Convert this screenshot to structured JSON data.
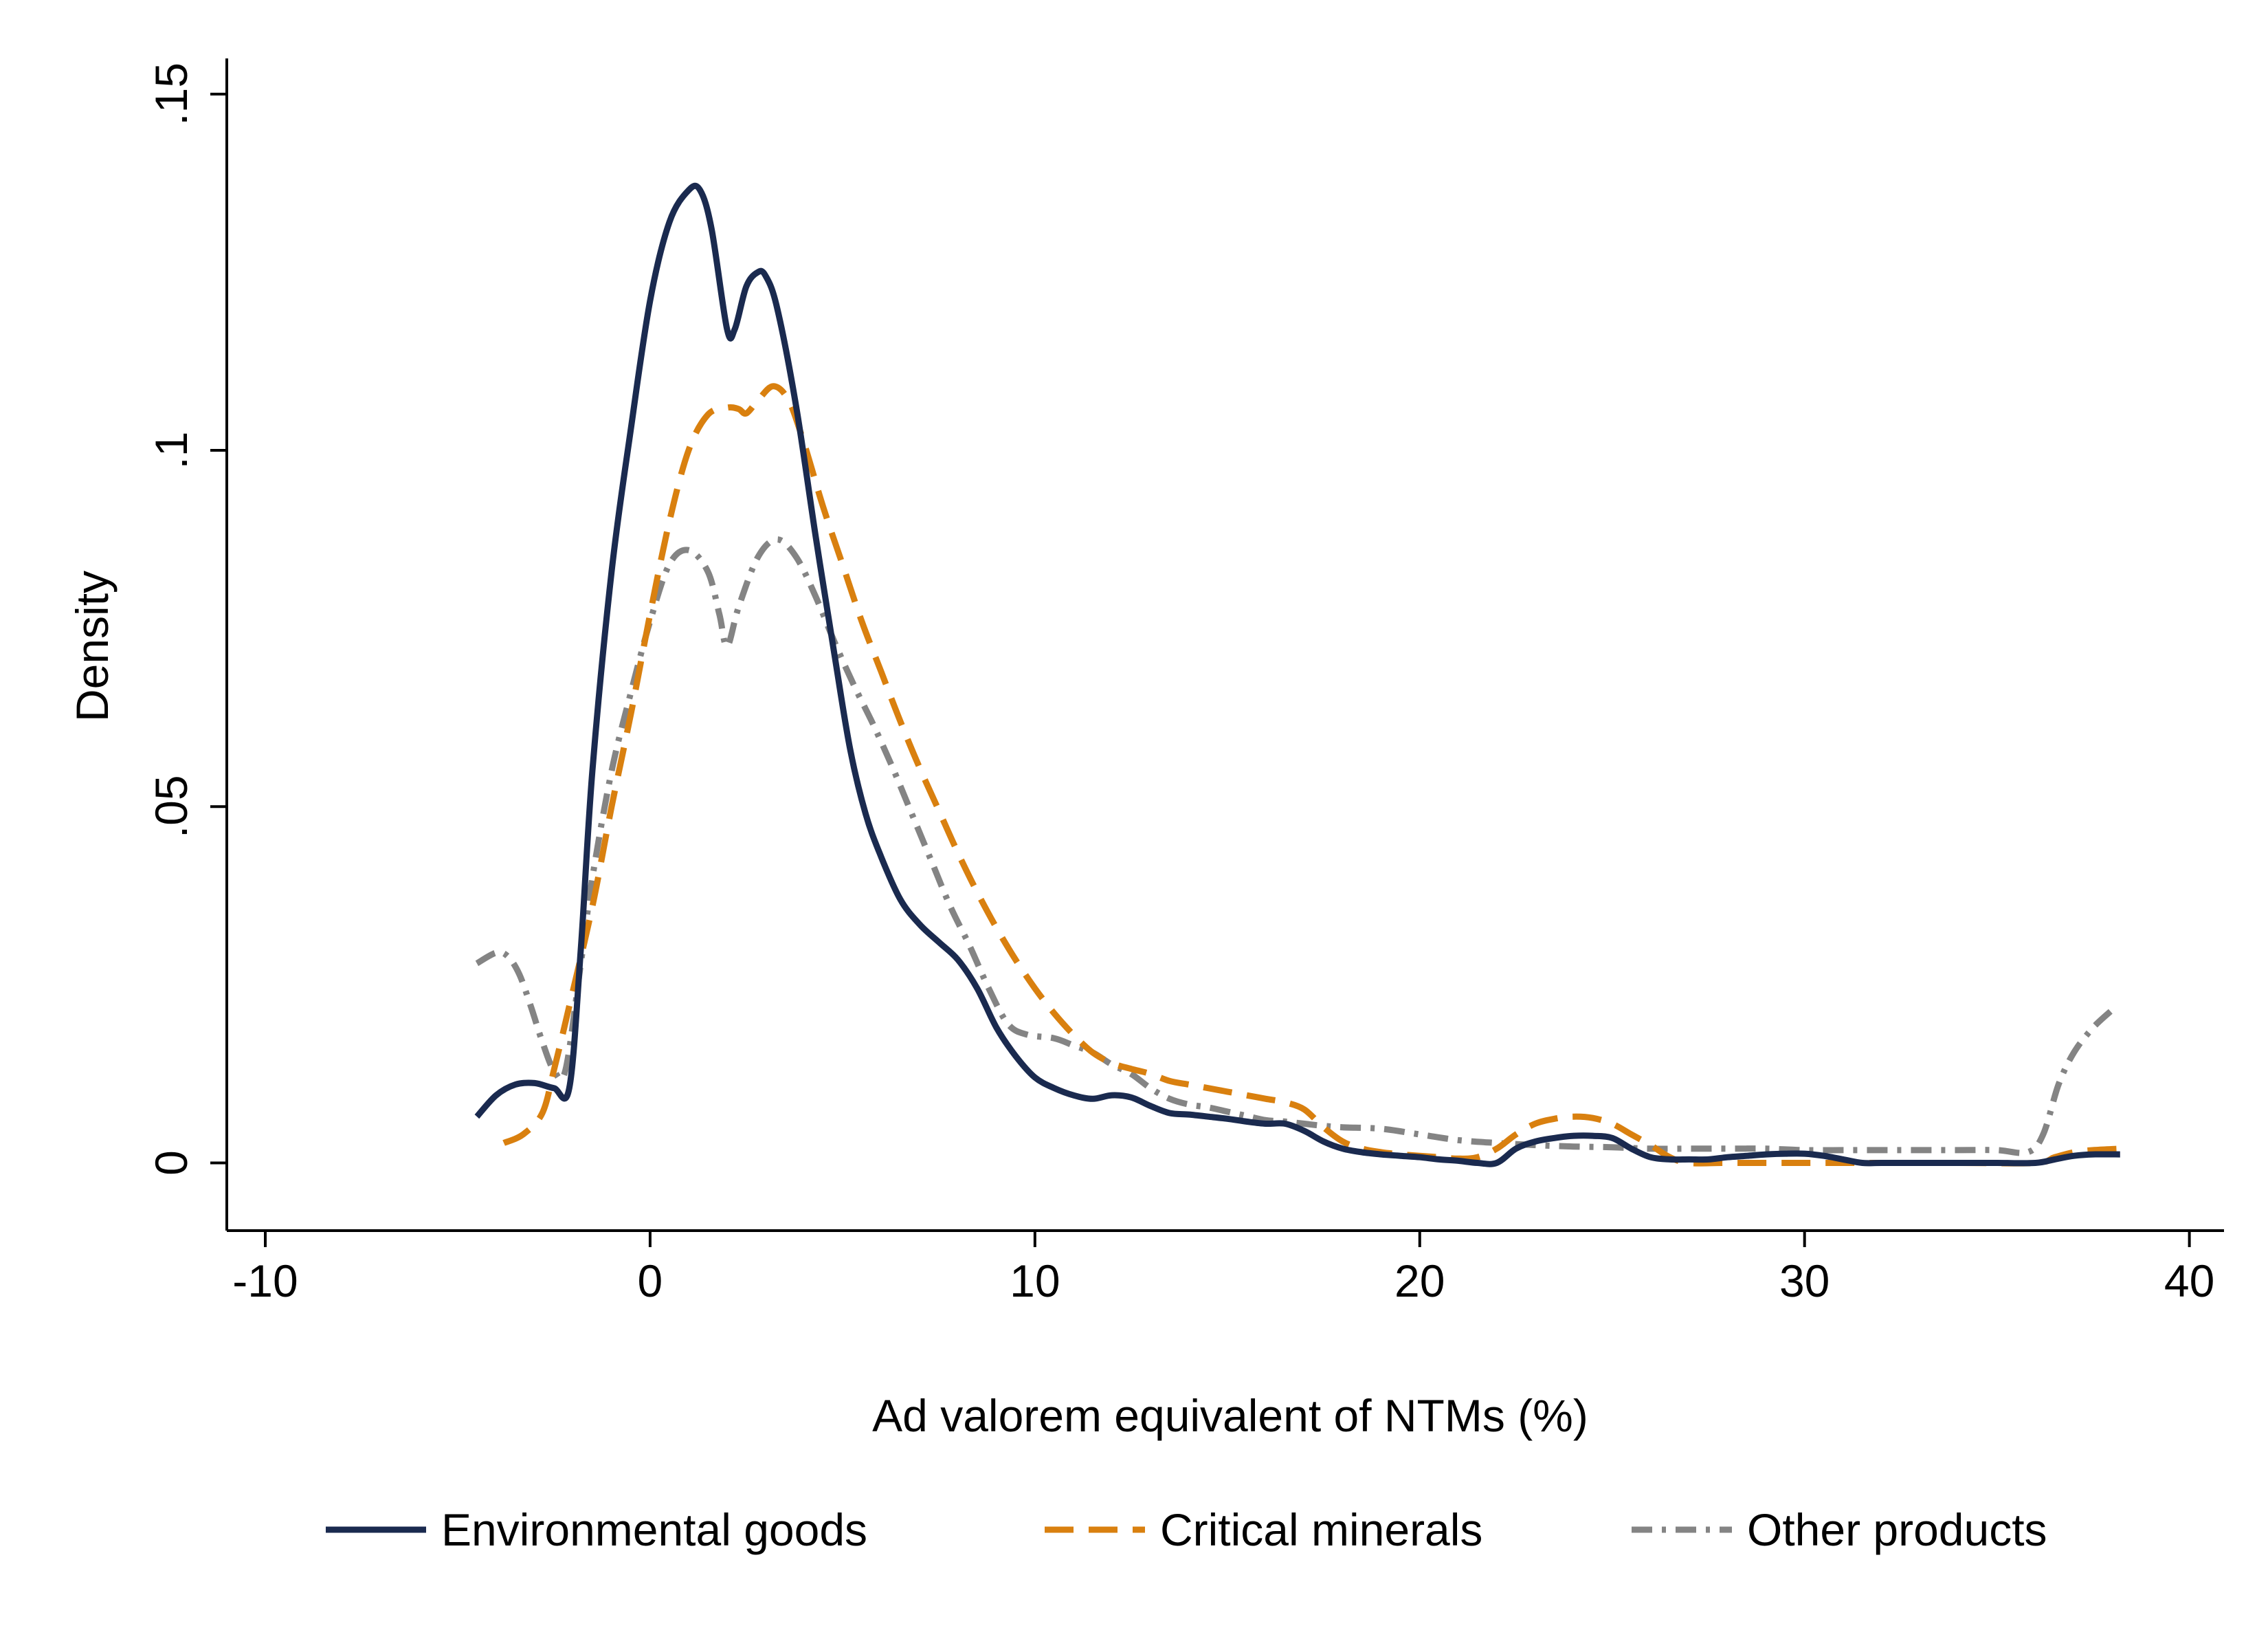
{
  "chart_data": {
    "type": "line",
    "title": "",
    "xlabel": "Ad valorem equivalent of NTMs (%)",
    "ylabel": "Density",
    "xlim": [
      -11,
      40.9
    ],
    "ylim": [
      -0.0095,
      0.155
    ],
    "xticks": [
      {
        "v": -10,
        "label": "-10"
      },
      {
        "v": 0,
        "label": "0"
      },
      {
        "v": 10,
        "label": "10"
      },
      {
        "v": 20,
        "label": "20"
      },
      {
        "v": 30,
        "label": "30"
      },
      {
        "v": 40,
        "label": "40"
      }
    ],
    "yticks": [
      {
        "v": 0,
        "label": "0"
      },
      {
        "v": 0.05,
        "label": ".05"
      },
      {
        "v": 0.1,
        "label": ".1"
      },
      {
        "v": 0.15,
        "label": ".15"
      }
    ],
    "grid": false,
    "legend_position": "bottom",
    "series": [
      {
        "name": "Environmental goods",
        "color": "#1a2a4f",
        "dash": "solid",
        "points": [
          [
            -4.5,
            0.0065
          ],
          [
            -4,
            0.0095
          ],
          [
            -3.5,
            0.011
          ],
          [
            -3,
            0.0112
          ],
          [
            -2.5,
            0.0105
          ],
          [
            -2.1,
            0.0105
          ],
          [
            -1.8,
            0.03
          ],
          [
            -1.5,
            0.055
          ],
          [
            -1,
            0.083
          ],
          [
            -0.5,
            0.103
          ],
          [
            0,
            0.121
          ],
          [
            0.5,
            0.132
          ],
          [
            1,
            0.1365
          ],
          [
            1.3,
            0.1365
          ],
          [
            1.6,
            0.131
          ],
          [
            2,
            0.117
          ],
          [
            2.2,
            0.117
          ],
          [
            2.5,
            0.123
          ],
          [
            2.8,
            0.125
          ],
          [
            3,
            0.1245
          ],
          [
            3.3,
            0.12
          ],
          [
            3.8,
            0.106
          ],
          [
            4.3,
            0.088
          ],
          [
            4.8,
            0.071
          ],
          [
            5.2,
            0.058
          ],
          [
            5.6,
            0.049
          ],
          [
            6,
            0.043
          ],
          [
            6.5,
            0.037
          ],
          [
            7,
            0.0335
          ],
          [
            7.5,
            0.031
          ],
          [
            8,
            0.0285
          ],
          [
            8.5,
            0.0245
          ],
          [
            9,
            0.019
          ],
          [
            9.5,
            0.015
          ],
          [
            10,
            0.012
          ],
          [
            10.5,
            0.0105
          ],
          [
            11,
            0.0095
          ],
          [
            11.5,
            0.009
          ],
          [
            12,
            0.0095
          ],
          [
            12.5,
            0.0092
          ],
          [
            13,
            0.008
          ],
          [
            13.5,
            0.007
          ],
          [
            14,
            0.0068
          ],
          [
            14.5,
            0.0065
          ],
          [
            15,
            0.0062
          ],
          [
            15.5,
            0.0058
          ],
          [
            16,
            0.0055
          ],
          [
            16.5,
            0.0055
          ],
          [
            17,
            0.0045
          ],
          [
            17.5,
            0.003
          ],
          [
            18,
            0.002
          ],
          [
            18.5,
            0.0015
          ],
          [
            19,
            0.0012
          ],
          [
            19.5,
            0.001
          ],
          [
            20,
            0.0008
          ],
          [
            20.5,
            0.0005
          ],
          [
            21,
            0.0003
          ],
          [
            21.5,
            0.0
          ],
          [
            22,
            0.0
          ],
          [
            22.5,
            0.002
          ],
          [
            23,
            0.003
          ],
          [
            23.5,
            0.0035
          ],
          [
            24,
            0.0038
          ],
          [
            24.5,
            0.0038
          ],
          [
            25,
            0.0035
          ],
          [
            25.5,
            0.002
          ],
          [
            26,
            0.0008
          ],
          [
            26.5,
            0.0005
          ],
          [
            27,
            0.0005
          ],
          [
            27.5,
            0.0005
          ],
          [
            28,
            0.0008
          ],
          [
            28.5,
            0.001
          ],
          [
            29,
            0.0012
          ],
          [
            29.5,
            0.0013
          ],
          [
            30,
            0.0013
          ],
          [
            30.5,
            0.001
          ],
          [
            31,
            0.0005
          ],
          [
            31.5,
            0.0
          ],
          [
            32,
            0.0
          ],
          [
            33,
            0.0
          ],
          [
            34,
            0.0
          ],
          [
            35,
            0.0
          ],
          [
            36,
            0.0
          ],
          [
            36.5,
            0.0005
          ],
          [
            37,
            0.001
          ],
          [
            37.5,
            0.0012
          ],
          [
            38.2,
            0.0012
          ]
        ]
      },
      {
        "name": "Critical minerals",
        "color": "#d9800f",
        "dash": "dashed",
        "points": [
          [
            -3.8,
            0.0028
          ],
          [
            -3.3,
            0.004
          ],
          [
            -2.8,
            0.007
          ],
          [
            -2.5,
            0.013
          ],
          [
            -2.1,
            0.022
          ],
          [
            -1.5,
            0.036
          ],
          [
            -1,
            0.05
          ],
          [
            -0.5,
            0.063
          ],
          [
            0,
            0.077
          ],
          [
            0.5,
            0.09
          ],
          [
            1,
            0.1
          ],
          [
            1.5,
            0.105
          ],
          [
            2,
            0.106
          ],
          [
            2.3,
            0.1058
          ],
          [
            2.5,
            0.1052
          ],
          [
            2.8,
            0.107
          ],
          [
            3.2,
            0.109
          ],
          [
            3.6,
            0.107
          ],
          [
            4,
            0.101
          ],
          [
            4.5,
            0.092
          ],
          [
            5,
            0.084
          ],
          [
            5.5,
            0.076
          ],
          [
            6,
            0.069
          ],
          [
            6.5,
            0.062
          ],
          [
            7,
            0.0555
          ],
          [
            7.5,
            0.0495
          ],
          [
            8,
            0.0435
          ],
          [
            8.5,
            0.038
          ],
          [
            9,
            0.033
          ],
          [
            9.5,
            0.0285
          ],
          [
            10,
            0.0245
          ],
          [
            10.5,
            0.021
          ],
          [
            11,
            0.018
          ],
          [
            11.5,
            0.0155
          ],
          [
            12,
            0.014
          ],
          [
            12.5,
            0.0132
          ],
          [
            13,
            0.0125
          ],
          [
            13.5,
            0.0115
          ],
          [
            14,
            0.011
          ],
          [
            14.5,
            0.0105
          ],
          [
            15,
            0.01
          ],
          [
            15.5,
            0.0095
          ],
          [
            16,
            0.009
          ],
          [
            16.5,
            0.0085
          ],
          [
            17,
            0.0075
          ],
          [
            17.5,
            0.005
          ],
          [
            18,
            0.003
          ],
          [
            18.5,
            0.002
          ],
          [
            19,
            0.0015
          ],
          [
            19.5,
            0.0012
          ],
          [
            20,
            0.001
          ],
          [
            20.5,
            0.0008
          ],
          [
            21,
            0.0006
          ],
          [
            21.5,
            0.0008
          ],
          [
            22,
            0.002
          ],
          [
            22.5,
            0.004
          ],
          [
            23,
            0.0055
          ],
          [
            23.5,
            0.0062
          ],
          [
            24,
            0.0065
          ],
          [
            24.5,
            0.0063
          ],
          [
            25,
            0.0055
          ],
          [
            25.5,
            0.004
          ],
          [
            26,
            0.0025
          ],
          [
            26.5,
            0.0008
          ],
          [
            27,
            0.0
          ],
          [
            28,
            0.0
          ],
          [
            30,
            0.0
          ],
          [
            32,
            0.0
          ],
          [
            34,
            0.0
          ],
          [
            36,
            0.0
          ],
          [
            36.5,
            0.0008
          ],
          [
            37,
            0.0015
          ],
          [
            37.5,
            0.0018
          ],
          [
            38.2,
            0.002
          ]
        ]
      },
      {
        "name": "Other products",
        "color": "#848484",
        "dash": "dashdot",
        "points": [
          [
            -4.5,
            0.028
          ],
          [
            -4,
            0.0295
          ],
          [
            -3.7,
            0.029
          ],
          [
            -3.4,
            0.0265
          ],
          [
            -3.1,
            0.022
          ],
          [
            -2.8,
            0.017
          ],
          [
            -2.5,
            0.013
          ],
          [
            -2.2,
            0.013
          ],
          [
            -1.8,
            0.028
          ],
          [
            -1.5,
            0.04
          ],
          [
            -1,
            0.055
          ],
          [
            -0.5,
            0.066
          ],
          [
            0,
            0.076
          ],
          [
            0.5,
            0.084
          ],
          [
            1,
            0.086
          ],
          [
            1.5,
            0.083
          ],
          [
            1.8,
            0.077
          ],
          [
            2,
            0.0725
          ],
          [
            2.3,
            0.078
          ],
          [
            2.8,
            0.085
          ],
          [
            3.3,
            0.0875
          ],
          [
            3.8,
            0.085
          ],
          [
            4.3,
            0.0795
          ],
          [
            4.8,
            0.073
          ],
          [
            5.3,
            0.067
          ],
          [
            5.8,
            0.0615
          ],
          [
            6.3,
            0.0555
          ],
          [
            6.8,
            0.049
          ],
          [
            7.3,
            0.0425
          ],
          [
            7.8,
            0.036
          ],
          [
            8.3,
            0.0305
          ],
          [
            8.8,
            0.0245
          ],
          [
            9.3,
            0.0195
          ],
          [
            9.8,
            0.018
          ],
          [
            10.5,
            0.0175
          ],
          [
            11,
            0.0165
          ],
          [
            11.5,
            0.0155
          ],
          [
            12,
            0.0138
          ],
          [
            12.5,
            0.0125
          ],
          [
            13,
            0.0105
          ],
          [
            13.5,
            0.009
          ],
          [
            14,
            0.0082
          ],
          [
            14.5,
            0.0078
          ],
          [
            15,
            0.0072
          ],
          [
            15.5,
            0.0066
          ],
          [
            16,
            0.006
          ],
          [
            16.5,
            0.0058
          ],
          [
            17,
            0.0055
          ],
          [
            17.5,
            0.0052
          ],
          [
            18,
            0.005
          ],
          [
            19,
            0.0048
          ],
          [
            20,
            0.004
          ],
          [
            21,
            0.0032
          ],
          [
            22,
            0.0028
          ],
          [
            23,
            0.0025
          ],
          [
            24,
            0.0023
          ],
          [
            25,
            0.0022
          ],
          [
            26,
            0.002
          ],
          [
            27,
            0.002
          ],
          [
            28,
            0.002
          ],
          [
            29,
            0.002
          ],
          [
            30,
            0.0018
          ],
          [
            31,
            0.0018
          ],
          [
            32,
            0.0018
          ],
          [
            33,
            0.0018
          ],
          [
            34,
            0.0018
          ],
          [
            35,
            0.0018
          ],
          [
            35.8,
            0.0015
          ],
          [
            36.2,
            0.004
          ],
          [
            36.6,
            0.011
          ],
          [
            37,
            0.0155
          ],
          [
            37.5,
            0.019
          ],
          [
            38,
            0.0215
          ]
        ]
      }
    ]
  }
}
